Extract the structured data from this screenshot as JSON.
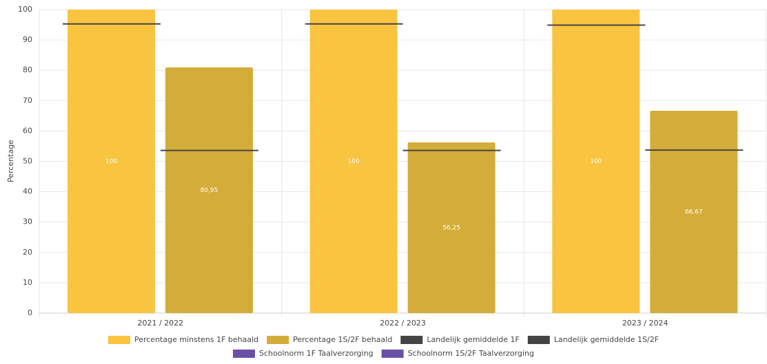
{
  "chart_data": {
    "type": "bar",
    "y_label": "Percentage",
    "categories": [
      "2021 / 2022",
      "2022 / 2023",
      "2023 / 2024"
    ],
    "series": [
      {
        "name": "Percentage minstens 1F behaald",
        "type": "bar",
        "color": "#f9c440",
        "values": [
          100,
          100,
          100
        ]
      },
      {
        "name": "Percentage 1S/2F behaald",
        "type": "bar",
        "color": "#d4ac3a",
        "values": [
          80.95,
          56.25,
          66.67
        ],
        "value_labels": [
          "80,95",
          "56,25",
          "66,67"
        ]
      },
      {
        "name": "Landelijk gemiddelde 1F",
        "type": "line",
        "color": "#444444",
        "values": [
          95.3,
          95.3,
          94.9
        ]
      },
      {
        "name": "Landelijk gemiddelde 1S/2F",
        "type": "line",
        "color": "#444444",
        "values": [
          53.6,
          53.6,
          53.7
        ]
      },
      {
        "name": "Schoolnorm 1F Taalverzorging",
        "type": "line",
        "color": "#6a4ea8",
        "values": [
          null,
          null,
          null
        ]
      },
      {
        "name": "Schoolnorm 1S/2F Taalverzorging",
        "type": "line",
        "color": "#6a4ea8",
        "values": [
          null,
          null,
          null
        ]
      }
    ],
    "ylim": [
      0,
      100
    ],
    "yticks": [
      0,
      10,
      20,
      30,
      40,
      50,
      60,
      70,
      80,
      90,
      100
    ],
    "grid": true
  }
}
